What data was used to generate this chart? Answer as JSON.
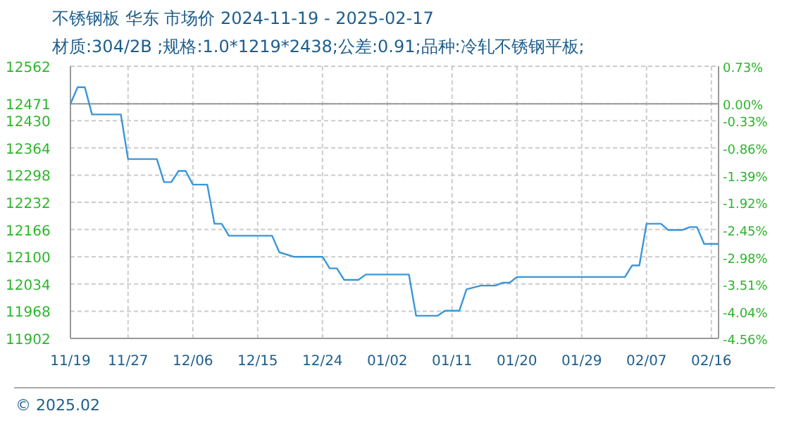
{
  "chart_data": {
    "type": "line",
    "title": "不锈钢板 华东 市场价 2024-11-19 - 2025-02-17",
    "subtitle": "材质:304/2B ;规格:1.0*1219*2438;公差:0.91;品种:冷轧不锈钢平板;",
    "annotations": [
      "© 2025.02"
    ],
    "x": [
      "2024-11-19",
      "2024-11-20",
      "2024-11-21",
      "2024-11-22",
      "2024-11-26",
      "2024-11-27",
      "2024-12-01",
      "2024-12-02",
      "2024-12-03",
      "2024-12-04",
      "2024-12-05",
      "2024-12-06",
      "2024-12-08",
      "2024-12-09",
      "2024-12-10",
      "2024-12-11",
      "2024-12-17",
      "2024-12-18",
      "2024-12-20",
      "2024-12-24",
      "2024-12-25",
      "2024-12-26",
      "2024-12-27",
      "2024-12-29",
      "2024-12-30",
      "2025-01-05",
      "2025-01-06",
      "2025-01-09",
      "2025-01-10",
      "2025-01-12",
      "2025-01-13",
      "2025-01-15",
      "2025-01-17",
      "2025-01-18",
      "2025-01-19",
      "2025-01-20",
      "2025-02-04",
      "2025-02-05",
      "2025-02-06",
      "2025-02-07",
      "2025-02-09",
      "2025-02-10",
      "2025-02-12",
      "2025-02-13",
      "2025-02-14",
      "2025-02-15",
      "2025-02-17"
    ],
    "series": [
      {
        "color": "#3a96d8",
        "values": [
          12471,
          12511,
          12511,
          12445,
          12445,
          12337,
          12337,
          12281,
          12281,
          12308,
          12308,
          12275,
          12275,
          12180,
          12180,
          12151,
          12151,
          12111,
          12100,
          12100,
          12072,
          12072,
          12044,
          12044,
          12057,
          12057,
          11957,
          11957,
          11969,
          11969,
          12021,
          12030,
          12030,
          12037,
          12037,
          12051,
          12051,
          12079,
          12079,
          12180,
          12180,
          12165,
          12165,
          12172,
          12172,
          12131,
          12131
        ]
      }
    ],
    "xlim": [
      "2024-11-19",
      "2025-02-17"
    ],
    "xticks": [
      {
        "value": "2024-11-19",
        "label": "11/19"
      },
      {
        "value": "2024-11-27",
        "label": "11/27"
      },
      {
        "value": "2024-12-06",
        "label": "12/06"
      },
      {
        "value": "2024-12-15",
        "label": "12/15"
      },
      {
        "value": "2024-12-24",
        "label": "12/24"
      },
      {
        "value": "2025-01-02",
        "label": "01/02"
      },
      {
        "value": "2025-01-11",
        "label": "01/11"
      },
      {
        "value": "2025-01-20",
        "label": "01/20"
      },
      {
        "value": "2025-01-29",
        "label": "01/29"
      },
      {
        "value": "2025-02-07",
        "label": "02/07"
      },
      {
        "value": "2025-02-16",
        "label": "02/16"
      }
    ],
    "ylim": [
      11902,
      12562
    ],
    "yticks": [
      11902,
      11968,
      12034,
      12100,
      12166,
      12232,
      12298,
      12364,
      12430,
      12471,
      12562
    ],
    "y2lim": [
      -4.56,
      0.73
    ],
    "y2ticks": [
      {
        "value": -4.56,
        "label": "-4.56%"
      },
      {
        "value": -4.04,
        "label": "-4.04%"
      },
      {
        "value": -3.51,
        "label": "-3.51%"
      },
      {
        "value": -2.98,
        "label": "-2.98%"
      },
      {
        "value": -2.45,
        "label": "-2.45%"
      },
      {
        "value": -1.92,
        "label": "-1.92%"
      },
      {
        "value": -1.39,
        "label": "-1.39%"
      },
      {
        "value": -0.86,
        "label": "-0.86%"
      },
      {
        "value": -0.33,
        "label": "-0.33%"
      },
      {
        "value": 0,
        "label": "0.00%"
      },
      {
        "value": 0.73,
        "label": "0.73%"
      }
    ],
    "ref_lines": [
      {
        "axis": "y",
        "value": 12471,
        "color": "#999999",
        "line_style": "solid"
      }
    ],
    "grid": true,
    "marker": "none",
    "line_style": "solid"
  }
}
